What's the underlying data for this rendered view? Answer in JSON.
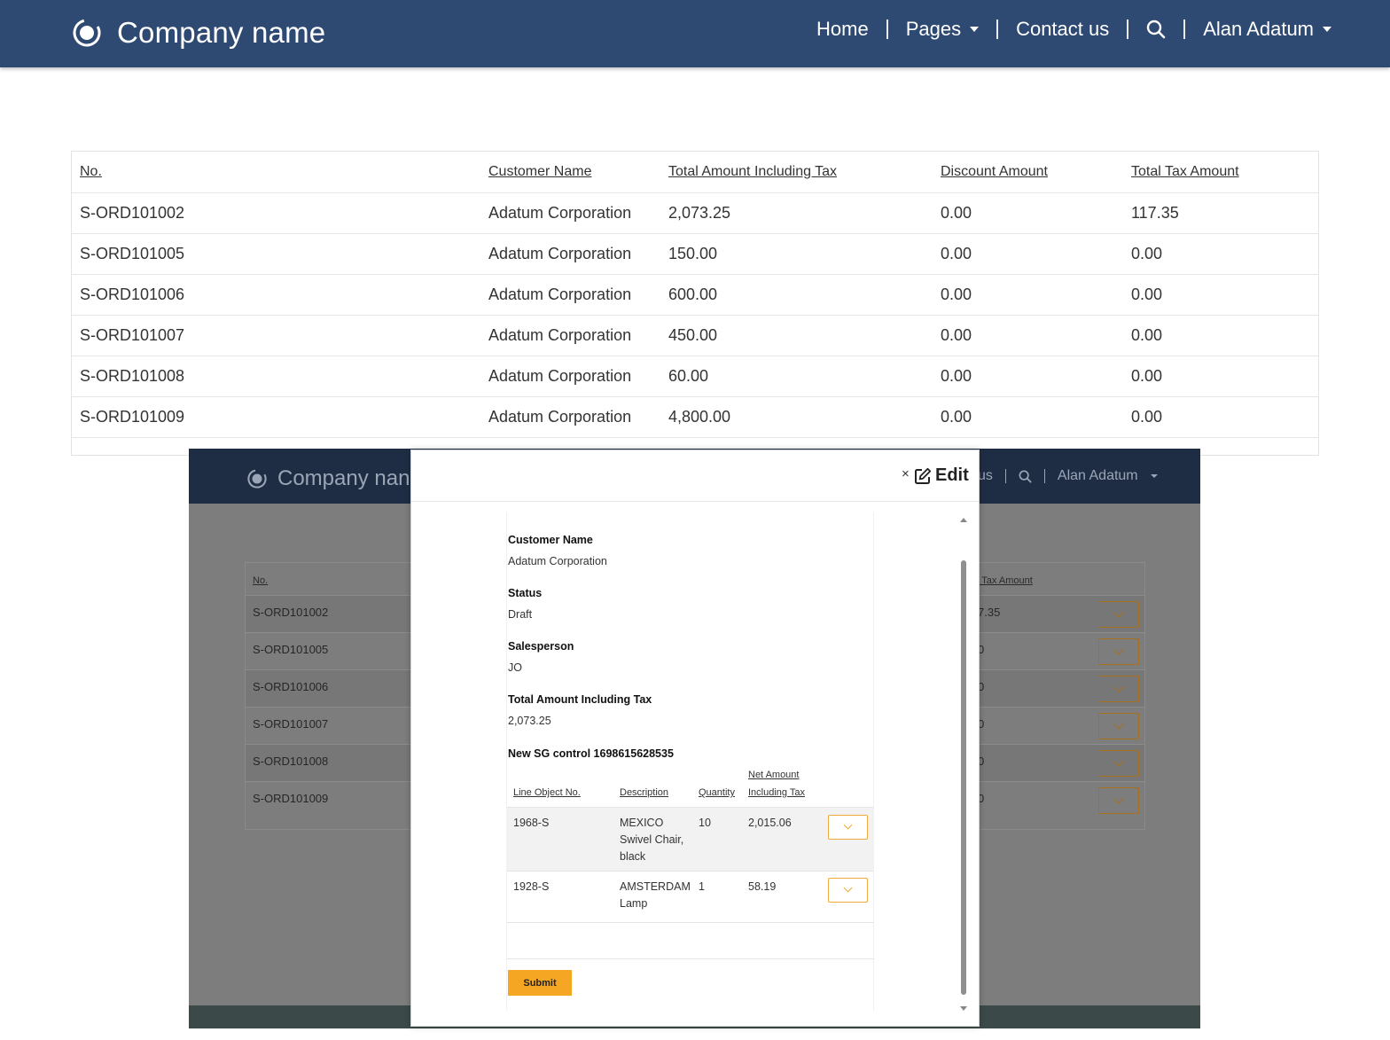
{
  "header": {
    "brand": "Company name",
    "nav": {
      "home": "Home",
      "pages": "Pages",
      "contact": "Contact us",
      "user": "Alan Adatum"
    }
  },
  "orders": {
    "columns": [
      "No.",
      "Customer Name",
      "Total Amount Including Tax",
      "Discount Amount",
      "Total Tax Amount"
    ],
    "rows": [
      [
        "S-ORD101002",
        "Adatum Corporation",
        "2,073.25",
        "0.00",
        "117.35"
      ],
      [
        "S-ORD101005",
        "Adatum Corporation",
        "150.00",
        "0.00",
        "0.00"
      ],
      [
        "S-ORD101006",
        "Adatum Corporation",
        "600.00",
        "0.00",
        "0.00"
      ],
      [
        "S-ORD101007",
        "Adatum Corporation",
        "450.00",
        "0.00",
        "0.00"
      ],
      [
        "S-ORD101008",
        "Adatum Corporation",
        "60.00",
        "0.00",
        "0.00"
      ],
      [
        "S-ORD101009",
        "Adatum Corporation",
        "4,800.00",
        "0.00",
        "0.00"
      ]
    ]
  },
  "inset": {
    "brand": "Company nan",
    "nav_partial": "us",
    "user": "Alan Adatum",
    "col_no": "No.",
    "col_tax_partial": "l Tax Amount",
    "rows": [
      [
        "S-ORD101002",
        "7.35"
      ],
      [
        "S-ORD101005",
        "0"
      ],
      [
        "S-ORD101006",
        "0"
      ],
      [
        "S-ORD101007",
        "0"
      ],
      [
        "S-ORD101008",
        "0"
      ],
      [
        "S-ORD101009",
        "0"
      ]
    ]
  },
  "modal": {
    "close": "×",
    "title": "Edit",
    "fields": {
      "customer_label": "Customer Name",
      "customer_value": "Adatum Corporation",
      "status_label": "Status",
      "status_value": "Draft",
      "salesperson_label": "Salesperson",
      "salesperson_value": "JO",
      "total_label": "Total Amount Including Tax",
      "total_value": "2,073.25"
    },
    "subgrid": {
      "title": "New SG control 1698615628535",
      "col_line": "Line Object No.",
      "col_desc": "Description",
      "col_qty": "Quantity",
      "col_net_1": "Net Amount",
      "col_net_2": "Including Tax",
      "rows": [
        {
          "line": "1968-S",
          "desc": [
            "MEXICO",
            "Swivel Chair,",
            "black"
          ],
          "qty": "10",
          "net": "2,015.06"
        },
        {
          "line": "1928-S",
          "desc": [
            "AMSTERDAM",
            "Lamp"
          ],
          "qty": "1",
          "net": "58.19"
        }
      ]
    },
    "submit": "Submit"
  }
}
